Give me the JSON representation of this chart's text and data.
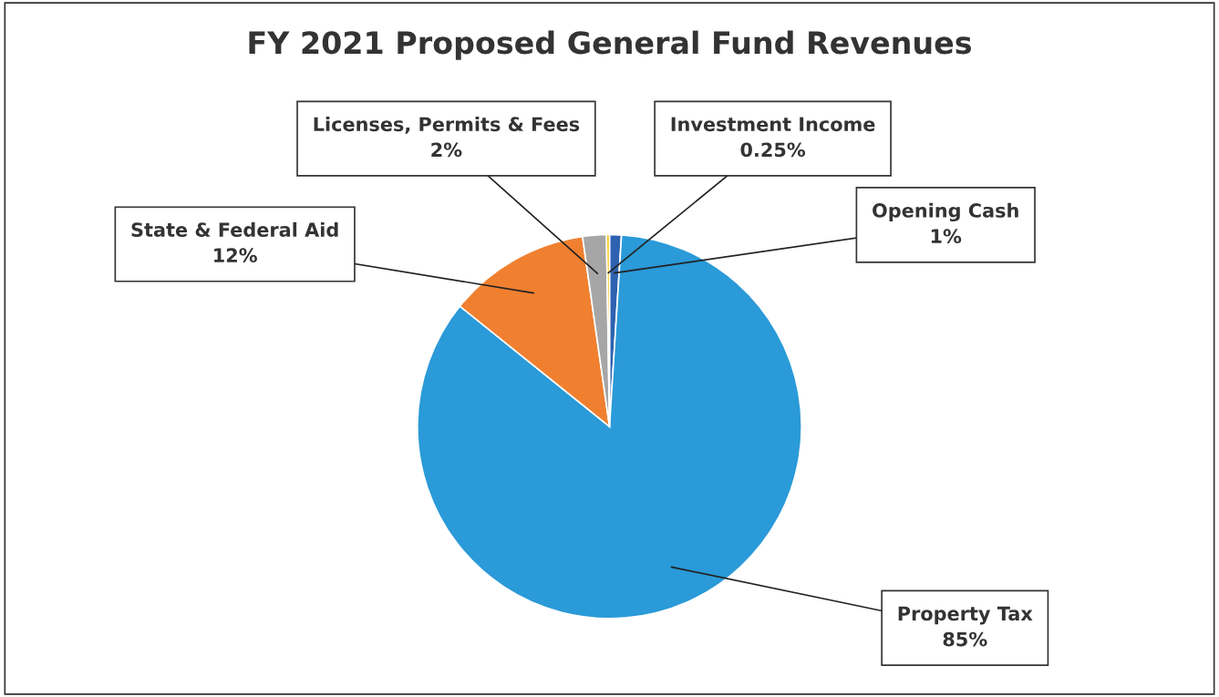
{
  "chart_data": {
    "type": "pie",
    "title": "FY 2021 Proposed General Fund Revenues",
    "categories": [
      "Opening Cash",
      "Property Tax",
      "State & Federal Aid",
      "Licenses, Permits & Fees",
      "Investment Income"
    ],
    "values": [
      1,
      85,
      12,
      2,
      0.25
    ],
    "value_labels": [
      "1%",
      "85%",
      "12%",
      "2%",
      "0.25%"
    ],
    "colors": [
      "#2e62b0",
      "#2a9ad8",
      "#f08030",
      "#a6a6a6",
      "#f5c000"
    ],
    "legend": false
  }
}
